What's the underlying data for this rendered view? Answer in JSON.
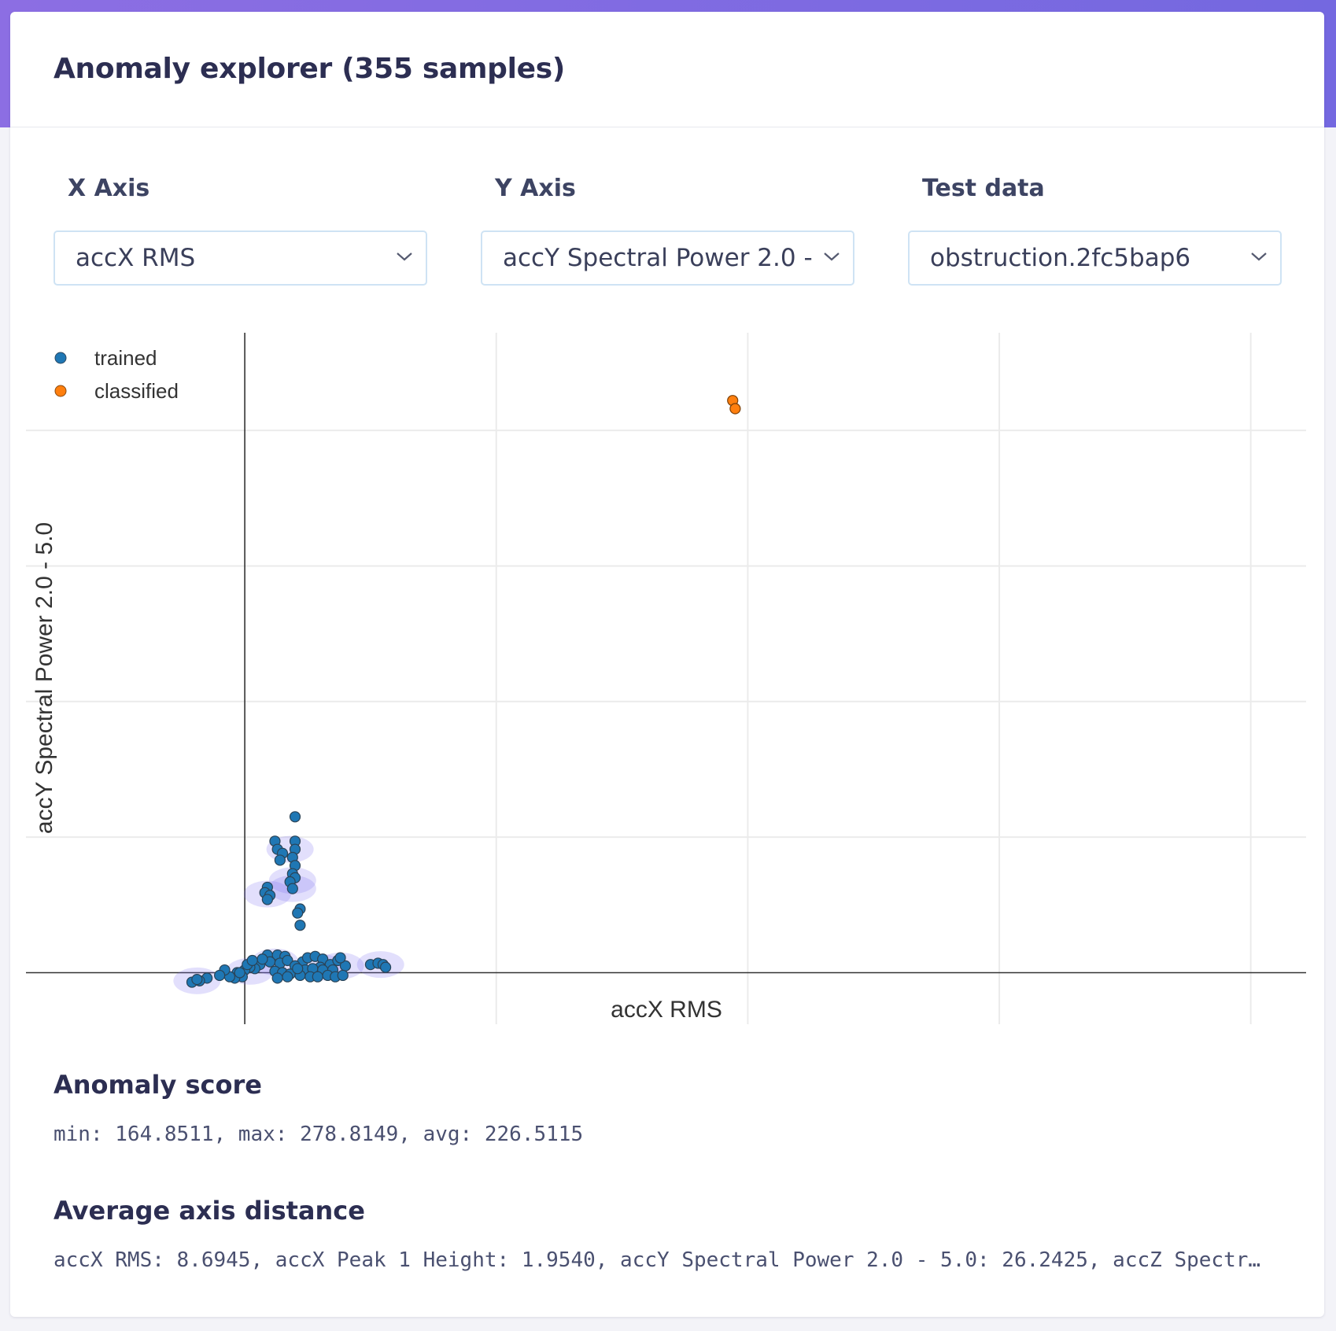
{
  "header": {
    "title": "Anomaly explorer (355 samples)"
  },
  "controls": {
    "x_axis": {
      "label": "X Axis",
      "value": "accX RMS"
    },
    "y_axis": {
      "label": "Y Axis",
      "value": "accY Spectral Power 2.0 - 5.0"
    },
    "test_data": {
      "label": "Test data",
      "value": "obstruction.2fc5bap6"
    }
  },
  "chart_data": {
    "type": "scatter",
    "xlabel": "accX RMS",
    "ylabel": "accY Spectral Power 2.0 - 5.0",
    "grid": true,
    "legend_position": "top-left",
    "xlim": [
      -0.87,
      4.22
    ],
    "ylim": [
      -0.38,
      4.72
    ],
    "series": [
      {
        "name": "trained",
        "color": "#1f77b4",
        "points": [
          [
            0.2,
            1.15
          ],
          [
            0.12,
            0.97
          ],
          [
            0.2,
            0.97
          ],
          [
            0.13,
            0.91
          ],
          [
            0.2,
            0.91
          ],
          [
            0.15,
            0.88
          ],
          [
            0.19,
            0.85
          ],
          [
            0.14,
            0.83
          ],
          [
            0.2,
            0.79
          ],
          [
            0.19,
            0.73
          ],
          [
            0.2,
            0.7
          ],
          [
            0.18,
            0.67
          ],
          [
            0.19,
            0.62
          ],
          [
            0.09,
            0.63
          ],
          [
            0.08,
            0.59
          ],
          [
            0.1,
            0.57
          ],
          [
            0.09,
            0.54
          ],
          [
            0.22,
            0.47
          ],
          [
            0.21,
            0.44
          ],
          [
            0.22,
            0.35
          ],
          [
            0.09,
            0.13
          ],
          [
            0.13,
            0.13
          ],
          [
            0.16,
            0.12
          ],
          [
            0.1,
            0.08
          ],
          [
            0.14,
            0.07
          ],
          [
            0.17,
            0.09
          ],
          [
            0.23,
            0.08
          ],
          [
            0.2,
            0.05
          ],
          [
            0.25,
            0.11
          ],
          [
            0.28,
            0.12
          ],
          [
            0.31,
            0.1
          ],
          [
            0.34,
            0.06
          ],
          [
            0.37,
            0.09
          ],
          [
            0.4,
            0.05
          ],
          [
            0.38,
            0.11
          ],
          [
            0.3,
            0.04
          ],
          [
            0.24,
            0.02
          ],
          [
            0.27,
            0.03
          ],
          [
            0.31,
            0.02
          ],
          [
            0.35,
            0.02
          ],
          [
            0.12,
            0.01
          ],
          [
            0.15,
            0.0
          ],
          [
            0.18,
            -0.01
          ],
          [
            0.22,
            -0.02
          ],
          [
            0.26,
            -0.03
          ],
          [
            0.29,
            -0.03
          ],
          [
            0.33,
            -0.02
          ],
          [
            0.36,
            -0.03
          ],
          [
            0.39,
            -0.02
          ],
          [
            0.13,
            -0.04
          ],
          [
            0.17,
            -0.03
          ],
          [
            0.21,
            0.03
          ],
          [
            0.06,
            0.06
          ],
          [
            0.07,
            0.1
          ],
          [
            0.04,
            0.03
          ],
          [
            0.02,
            0.04
          ],
          [
            0.0,
            0.02
          ],
          [
            -0.03,
            0.0
          ],
          [
            -0.01,
            -0.03
          ],
          [
            -0.04,
            -0.04
          ],
          [
            -0.06,
            -0.03
          ],
          [
            -0.02,
            0.0
          ],
          [
            0.01,
            0.06
          ],
          [
            0.03,
            0.09
          ],
          [
            -0.08,
            0.02
          ],
          [
            -0.1,
            -0.02
          ],
          [
            -0.15,
            -0.04
          ],
          [
            -0.18,
            -0.06
          ],
          [
            -0.21,
            -0.07
          ],
          [
            -0.19,
            -0.05
          ],
          [
            0.5,
            0.06
          ],
          [
            0.53,
            0.07
          ],
          [
            0.55,
            0.06
          ],
          [
            0.56,
            0.04
          ]
        ]
      },
      {
        "name": "classified",
        "color": "#ff7f0e",
        "points": [
          [
            1.94,
            4.22
          ],
          [
            1.95,
            4.16
          ]
        ]
      }
    ]
  },
  "score": {
    "heading": "Anomaly score",
    "text": "min: 164.8511, max: 278.8149, avg: 226.5115"
  },
  "distance": {
    "heading": "Average axis distance",
    "text": "accX RMS: 8.6945, accX Peak 1 Height: 1.9540, accY Spectral Power 2.0 - 5.0: 26.2425, accZ Spectr…"
  }
}
